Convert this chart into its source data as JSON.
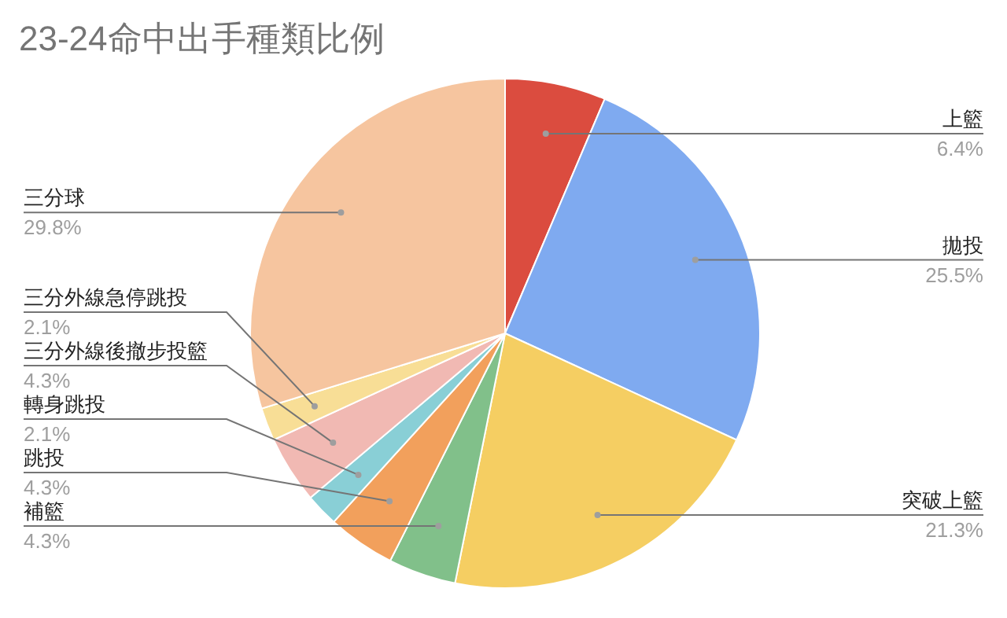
{
  "chart_data": {
    "type": "pie",
    "title": "23-24命中出手種類比例",
    "categories": [
      "上籃",
      "拋投",
      "突破上籃",
      "補籃",
      "跳投",
      "轉身跳投",
      "三分外線後撤步投籃",
      "三分外線急停跳投",
      "三分球"
    ],
    "values": [
      6.4,
      25.5,
      21.3,
      4.3,
      4.3,
      2.1,
      4.3,
      2.1,
      29.8
    ],
    "colors": [
      "#db4c3f",
      "#7faaf0",
      "#f5ce62",
      "#81c08a",
      "#f2a05c",
      "#89cfd6",
      "#f1b9b3",
      "#f8de96",
      "#f6c59f"
    ],
    "value_labels": [
      "6.4%",
      "25.5%",
      "21.3%",
      "4.3%",
      "4.3%",
      "2.1%",
      "4.3%",
      "2.1%",
      "29.8%"
    ]
  }
}
